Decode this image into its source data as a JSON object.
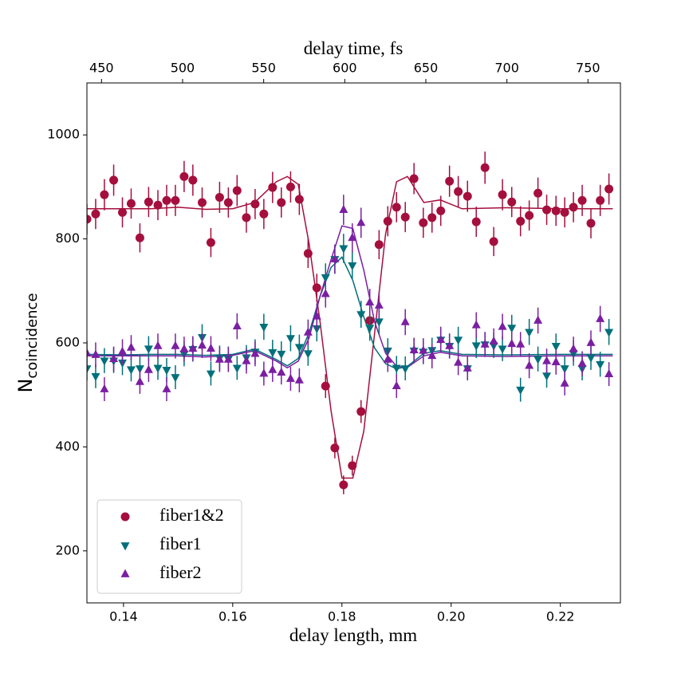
{
  "chart_data": {
    "type": "scatter",
    "xlabel": "delay length, mm",
    "x2label": "delay time, fs",
    "ylabel": "N",
    "ylabel_sub": "coincidence",
    "xlim": [
      0.1333,
      0.231
    ],
    "xticks": [
      0.14,
      0.16,
      0.18,
      {
        "value": 0.2,
        "label": "0.20"
      },
      0.22
    ],
    "x2lim": [
      441,
      770
    ],
    "x2ticks": [
      450,
      500,
      550,
      600,
      650,
      700,
      750
    ],
    "ylim": [
      100,
      1100
    ],
    "yticks": [
      200,
      400,
      600,
      800,
      1000
    ],
    "legend": "lower left",
    "x": [
      0.1333,
      0.1349,
      0.1365,
      0.1382,
      0.1398,
      0.1414,
      0.143,
      0.1446,
      0.1463,
      0.1479,
      0.1495,
      0.1511,
      0.1527,
      0.1544,
      0.156,
      0.1576,
      0.1592,
      0.1608,
      0.1625,
      0.1641,
      0.1657,
      0.1673,
      0.1689,
      0.1706,
      0.1722,
      0.1738,
      0.1754,
      0.177,
      0.1787,
      0.1803,
      0.1819,
      0.1835,
      0.1851,
      0.1868,
      0.1884,
      0.19,
      0.1916,
      0.1932,
      0.1949,
      0.1965,
      0.1981,
      0.1997,
      0.2013,
      0.203,
      0.2046,
      0.2062,
      0.2078,
      0.2094,
      0.2111,
      0.2127,
      0.2143,
      0.2159,
      0.2175,
      0.2192,
      0.2208,
      0.2224,
      0.224,
      0.2256,
      0.2273,
      0.2289
    ],
    "fit_x": [
      0.1333,
      0.14,
      0.145,
      0.15,
      0.155,
      0.16,
      0.164,
      0.168,
      0.17,
      0.172,
      0.174,
      0.176,
      0.178,
      0.18,
      0.182,
      0.184,
      0.186,
      0.188,
      0.19,
      0.192,
      0.195,
      0.198,
      0.202,
      0.21,
      0.22,
      0.2296
    ],
    "series": [
      {
        "name": "fiber1&2",
        "color": "#a50f3d",
        "marker": "circle",
        "values": [
          838,
          848,
          885,
          913,
          851,
          868,
          802,
          871,
          865,
          874,
          874,
          920,
          913,
          870,
          793,
          880,
          870,
          893,
          841,
          867,
          848,
          899,
          870,
          900,
          876,
          772,
          706,
          517,
          398,
          327,
          364,
          468,
          643,
          789,
          834,
          861,
          842,
          916,
          831,
          841,
          854,
          911,
          891,
          882,
          833,
          937,
          795,
          885,
          871,
          834,
          845,
          888,
          856,
          854,
          851,
          861,
          874,
          830,
          874,
          896
        ],
        "errors": [
          29,
          29,
          30,
          30,
          29,
          29,
          28,
          29,
          29,
          30,
          30,
          30,
          30,
          29,
          28,
          30,
          29,
          30,
          29,
          29,
          29,
          30,
          29,
          30,
          30,
          28,
          27,
          23,
          20,
          18,
          19,
          22,
          25,
          28,
          29,
          29,
          29,
          30,
          29,
          29,
          29,
          30,
          30,
          30,
          29,
          31,
          28,
          30,
          29,
          29,
          29,
          30,
          29,
          29,
          29,
          29,
          30,
          29,
          30,
          30
        ],
        "fit": [
          858,
          858,
          858,
          861,
          857,
          858,
          870,
          910,
          920,
          905,
          790,
          640,
          470,
          340,
          340,
          430,
          620,
          810,
          910,
          920,
          870,
          875,
          858,
          860,
          858,
          858
        ]
      },
      {
        "name": "fiber1",
        "color": "#00707a",
        "marker": "triangle-down",
        "values": [
          551,
          536,
          566,
          566,
          562,
          549,
          551,
          589,
          552,
          548,
          534,
          579,
          588,
          611,
          541,
          571,
          569,
          552,
          572,
          583,
          631,
          582,
          579,
          609,
          592,
          580,
          628,
          726,
          761,
          782,
          749,
          655,
          629,
          641,
          585,
          552,
          551,
          585,
          583,
          586,
          606,
          594,
          606,
          551,
          595,
          597,
          595,
          589,
          629,
          510,
          621,
          569,
          537,
          594,
          551,
          580,
          551,
          572,
          559,
          621
        ],
        "errors": [
          23,
          23,
          24,
          24,
          24,
          23,
          23,
          24,
          23,
          23,
          23,
          24,
          24,
          25,
          23,
          24,
          24,
          23,
          24,
          24,
          25,
          24,
          24,
          25,
          24,
          24,
          25,
          27,
          28,
          28,
          27,
          26,
          25,
          25,
          24,
          23,
          23,
          24,
          24,
          24,
          25,
          24,
          25,
          23,
          24,
          24,
          24,
          24,
          25,
          23,
          25,
          24,
          23,
          24,
          23,
          24,
          23,
          24,
          24,
          25
        ],
        "fit": [
          578,
          577,
          578,
          578,
          576,
          578,
          588,
          568,
          556,
          570,
          620,
          690,
          745,
          765,
          720,
          650,
          590,
          560,
          550,
          555,
          580,
          585,
          578,
          577,
          578,
          578
        ]
      },
      {
        "name": "fiber2",
        "color": "#7b1fa2",
        "marker": "triangle-up",
        "values": [
          580,
          577,
          511,
          569,
          583,
          591,
          525,
          548,
          594,
          511,
          594,
          588,
          589,
          595,
          589,
          568,
          568,
          632,
          565,
          579,
          541,
          548,
          543,
          531,
          528,
          620,
          651,
          694,
          761,
          856,
          802,
          831,
          678,
          672,
          568,
          517,
          640,
          586,
          585,
          575,
          606,
          594,
          562,
          551,
          634,
          597,
          603,
          631,
          598,
          597,
          556,
          643,
          565,
          563,
          522,
          588,
          560,
          600,
          646,
          540
        ],
        "errors": [
          24,
          24,
          23,
          24,
          24,
          24,
          23,
          23,
          24,
          23,
          24,
          24,
          24,
          24,
          24,
          24,
          24,
          25,
          24,
          24,
          23,
          23,
          23,
          23,
          23,
          25,
          25,
          26,
          28,
          29,
          28,
          29,
          26,
          26,
          24,
          23,
          25,
          24,
          24,
          24,
          25,
          24,
          24,
          23,
          25,
          24,
          25,
          25,
          24,
          24,
          24,
          25,
          24,
          24,
          23,
          24,
          24,
          24,
          25,
          23
        ],
        "fit": [
          575,
          575,
          575,
          575,
          573,
          576,
          585,
          565,
          552,
          565,
          610,
          690,
          760,
          825,
          820,
          740,
          640,
          580,
          555,
          553,
          575,
          582,
          575,
          574,
          575,
          575
        ]
      }
    ]
  }
}
